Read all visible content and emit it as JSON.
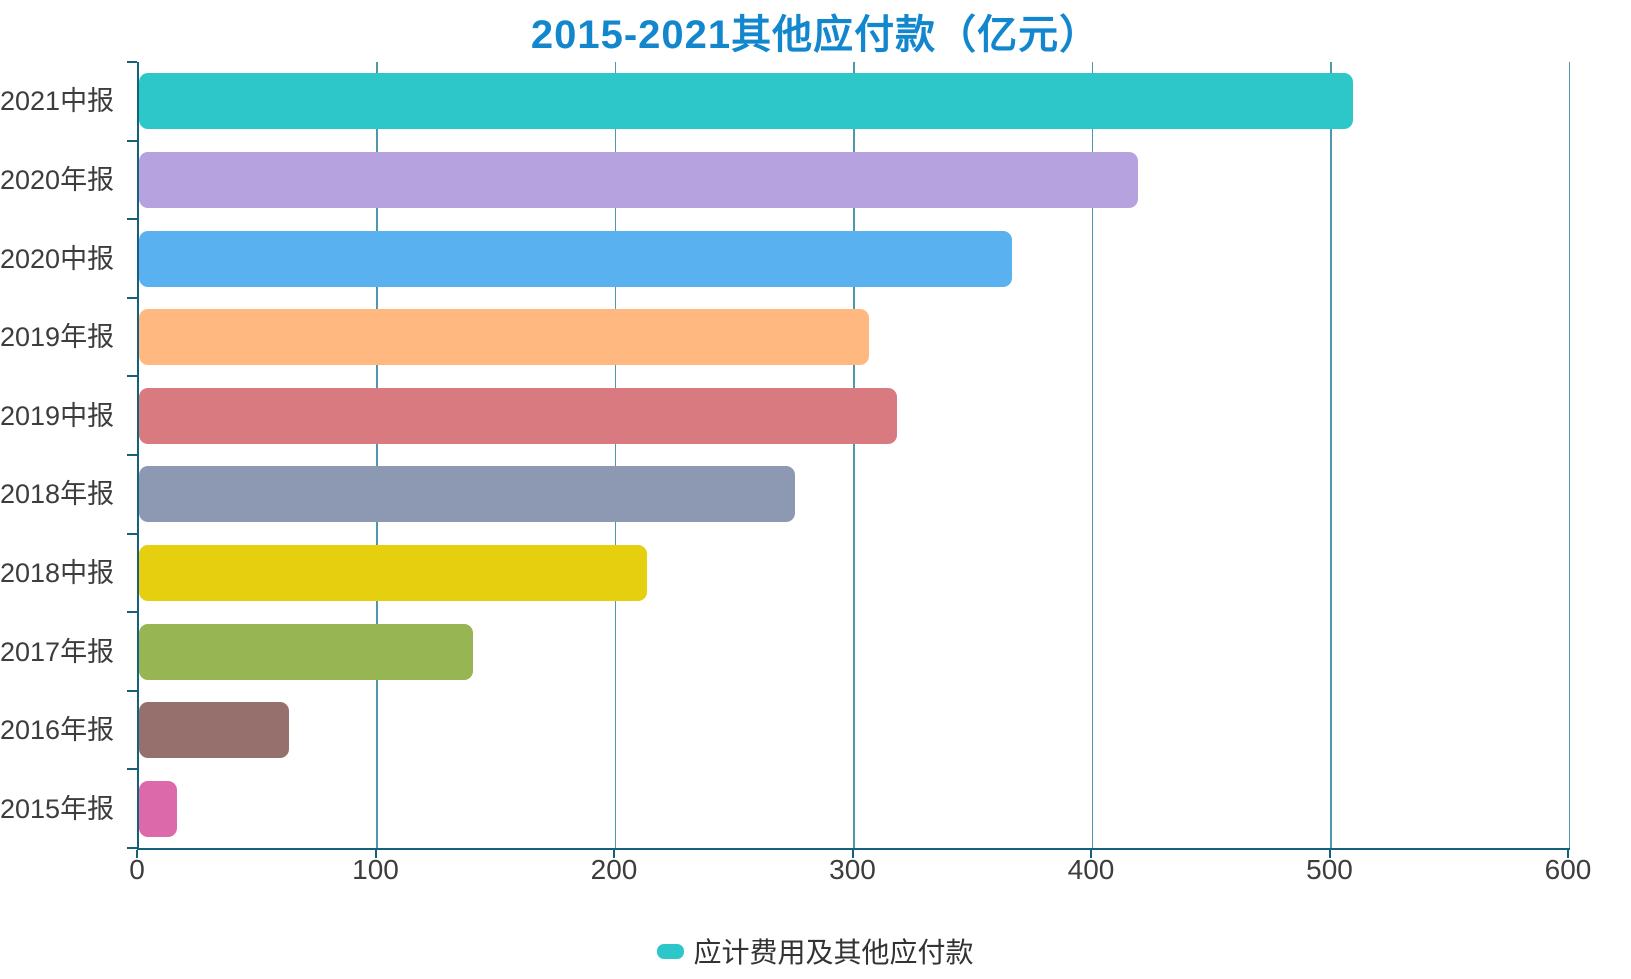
{
  "title": "2015-2021其他应付款（亿元）",
  "legend": {
    "label": "应计费用及其他应付款",
    "marker_color": "#2ec7c9"
  },
  "colors": {
    "title": "#1287cd",
    "axis_line": "#15617a",
    "grid_line": "#4e97ad",
    "label_text": "#3d3d3d",
    "legend_text": "#333333"
  },
  "chart_data": {
    "type": "bar",
    "orientation": "horizontal",
    "title": "2015-2021其他应付款（亿元）",
    "xlabel": "",
    "ylabel": "",
    "categories": [
      "2021中报",
      "2020年报",
      "2020中报",
      "2019年报",
      "2019中报",
      "2018年报",
      "2018中报",
      "2017年报",
      "2016年报",
      "2015年报"
    ],
    "series": [
      {
        "name": "应计费用及其他应付款",
        "values": [
          509,
          419,
          366,
          306,
          318,
          275,
          213,
          140,
          63,
          16
        ]
      }
    ],
    "bar_colors": [
      "#2ec7c9",
      "#b6a2de",
      "#5ab1ef",
      "#ffb980",
      "#d87a80",
      "#8d98b3",
      "#e5cf0f",
      "#97b552",
      "#95706d",
      "#dc69aa"
    ],
    "xlim": [
      0,
      600
    ],
    "x_ticks": [
      0,
      100,
      200,
      300,
      400,
      500,
      600
    ],
    "grid": true,
    "legend_position": "bottom"
  }
}
